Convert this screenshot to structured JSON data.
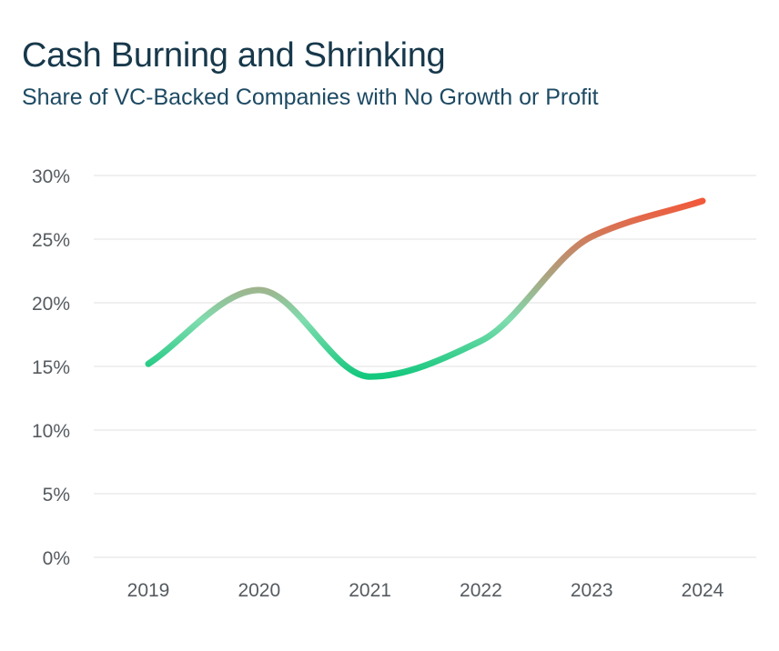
{
  "title": "Cash Burning and Shrinking",
  "subtitle": "Share of VC-Backed Companies with No Growth or Profit",
  "colors": {
    "grid": "#ececec",
    "tick_text": "#555b60",
    "line_low": "#14c87e",
    "line_mid": "#7fdcae",
    "line_high": "#f2583a"
  },
  "chart_data": {
    "type": "line",
    "title": "Cash Burning and Shrinking",
    "subtitle": "Share of VC-Backed Companies with No Growth or Profit",
    "categories": [
      "2019",
      "2020",
      "2021",
      "2022",
      "2023",
      "2024"
    ],
    "x": [
      2019,
      2020,
      2021,
      2022,
      2023,
      2024
    ],
    "series": [
      {
        "values": [
          15.2,
          21.0,
          14.2,
          17.0,
          25.2,
          28.0
        ]
      }
    ],
    "ylim": [
      0,
      30
    ],
    "yticks": [
      0,
      5,
      10,
      15,
      20,
      25,
      30
    ],
    "ytick_labels": [
      "0%",
      "5%",
      "10%",
      "15%",
      "20%",
      "25%",
      "30%"
    ],
    "grid": true,
    "legend": "none"
  }
}
